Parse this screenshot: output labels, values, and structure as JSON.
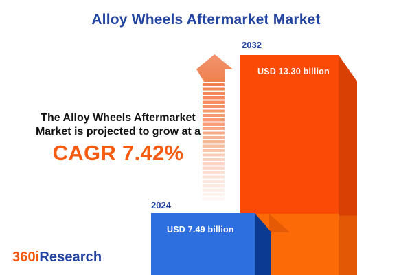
{
  "title": "Alloy Wheels Aftermarket Market",
  "insight": {
    "line1": "The Alloy Wheels Aftermarket",
    "line2": "Market is projected to grow at a",
    "cagr_text": "CAGR 7.42%"
  },
  "chart_data": {
    "type": "bar",
    "title": "Alloy Wheels Aftermarket Market",
    "categories": [
      "2024",
      "2032"
    ],
    "values": [
      7.49,
      13.3
    ],
    "unit": "USD billion",
    "value_labels": [
      "USD 7.49 billion",
      "USD 13.30 billion"
    ],
    "cagr_percent": 7.42,
    "series_colors": [
      "#2E6FE0",
      "#FA4A06"
    ],
    "legend_position": "none",
    "axes": "none",
    "style": "3d-infographic-bars"
  },
  "logo": {
    "prefix": "360i",
    "suffix": "Research"
  },
  "colors": {
    "background": "#FFFFFF",
    "title_blue": "#2344A1",
    "cagr_orange": "#F55C11",
    "text_black": "#141414",
    "bar_2024_front": "#2E6FE0",
    "bar_2024_side": "#0A3A92",
    "bar_2032_front_top": "#FA4A06",
    "bar_2032_front_bottom": "#FC6A08",
    "bar_2032_side_top": "#D84004",
    "bar_2032_side_bottom": "#E25804",
    "arrow_orange": "#EF8150",
    "logo_orange": "#F4570B"
  }
}
